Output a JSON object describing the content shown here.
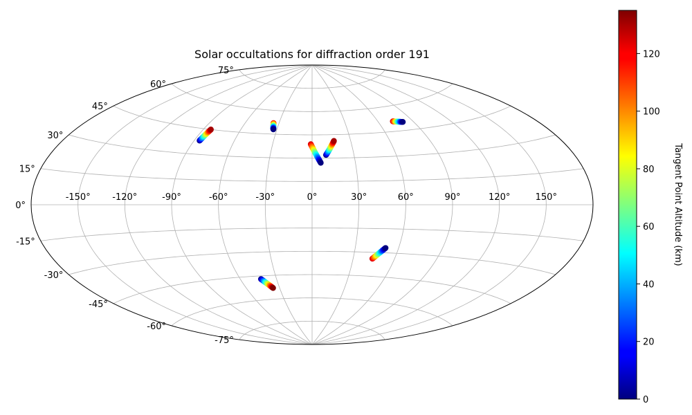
{
  "chart_data": {
    "type": "scatter",
    "projection": "aitoff",
    "title": "Solar occultations for diffraction order 191",
    "grid": true,
    "longitude_ticks": [
      -150,
      -120,
      -90,
      -60,
      -30,
      0,
      30,
      60,
      90,
      120,
      150
    ],
    "longitude_tick_labels": [
      "-150°",
      "-120°",
      "-90°",
      "-60°",
      "-30°",
      "0°",
      "30°",
      "60°",
      "90°",
      "120°",
      "150°"
    ],
    "latitude_ticks": [
      -75,
      -60,
      -45,
      -30,
      -15,
      0,
      15,
      30,
      45,
      60,
      75
    ],
    "latitude_tick_labels": [
      "-75°",
      "-60°",
      "-45°",
      "-30°",
      "-15°",
      "0°",
      "15°",
      "30°",
      "45°",
      "60°",
      "75°"
    ],
    "colorbar": {
      "label": "Tangent Point Altitude (km)",
      "colormap": "jet",
      "range": [
        0,
        135
      ],
      "ticks": [
        0,
        20,
        40,
        60,
        80,
        100,
        120
      ],
      "tick_labels": [
        "0",
        "20",
        "40",
        "60",
        "80",
        "100",
        "120"
      ]
    },
    "tracks": [
      {
        "lon_start": -86,
        "lat_start": 38,
        "alt_start": 0,
        "lon_end": -84,
        "lat_end": 45,
        "alt_end": 130
      },
      {
        "lon_start": -35,
        "lat_start": 52,
        "alt_start": 120,
        "lon_end": -33,
        "lat_end": 48,
        "alt_end": 0
      },
      {
        "lon_start": -1,
        "lat_start": 39,
        "alt_start": 125,
        "lon_end": 6,
        "lat_end": 27,
        "alt_end": 0
      },
      {
        "lon_start": 10,
        "lat_start": 32,
        "alt_start": 0,
        "lon_end": 17,
        "lat_end": 41,
        "alt_end": 130
      },
      {
        "lon_start": 73,
        "lat_start": 51,
        "alt_start": 125,
        "lon_end": 81,
        "lat_end": 50,
        "alt_end": 0
      },
      {
        "lon_start": -43,
        "lat_start": -47,
        "alt_start": 0,
        "lon_end": -36,
        "lat_end": -53,
        "alt_end": 135
      },
      {
        "lon_start": 44,
        "lat_start": -34,
        "alt_start": 125,
        "lon_end": 51,
        "lat_end": -27,
        "alt_end": 0
      }
    ]
  }
}
